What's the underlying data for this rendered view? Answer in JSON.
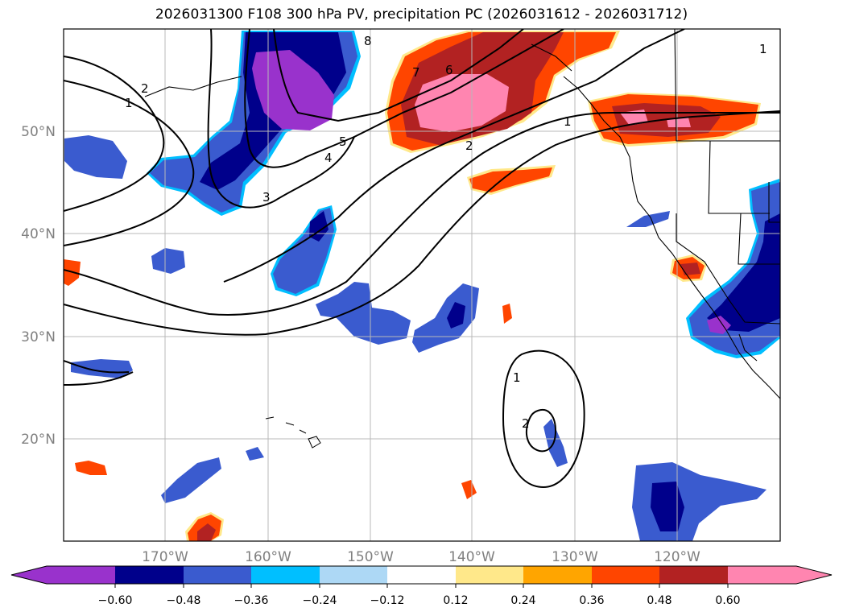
{
  "title": "2026031300 F108 300 hPa PV, precipitation PC (2026031612 - 2026031712)",
  "map": {
    "lat_labels": [
      "50°N",
      "40°N",
      "30°N",
      "20°N"
    ],
    "lon_labels": [
      "170°W",
      "160°W",
      "150°W",
      "140°W",
      "130°W",
      "120°W"
    ],
    "contour_labels": [
      "1",
      "2",
      "3",
      "4",
      "5",
      "6",
      "7",
      "8",
      "1",
      "2",
      "1",
      "1",
      "2"
    ]
  },
  "colorbar": {
    "ticks": [
      "−0.60",
      "−0.48",
      "−0.36",
      "−0.24",
      "−0.12",
      "0.12",
      "0.24",
      "0.36",
      "0.48",
      "0.60"
    ],
    "colors": [
      "#9932cc",
      "#00008b",
      "#3a5bcf",
      "#00bfff",
      "#add8f5",
      "#ffffff",
      "#ffe88a",
      "#ffa500",
      "#ff4500",
      "#b22222",
      "#ff85b0"
    ]
  }
}
